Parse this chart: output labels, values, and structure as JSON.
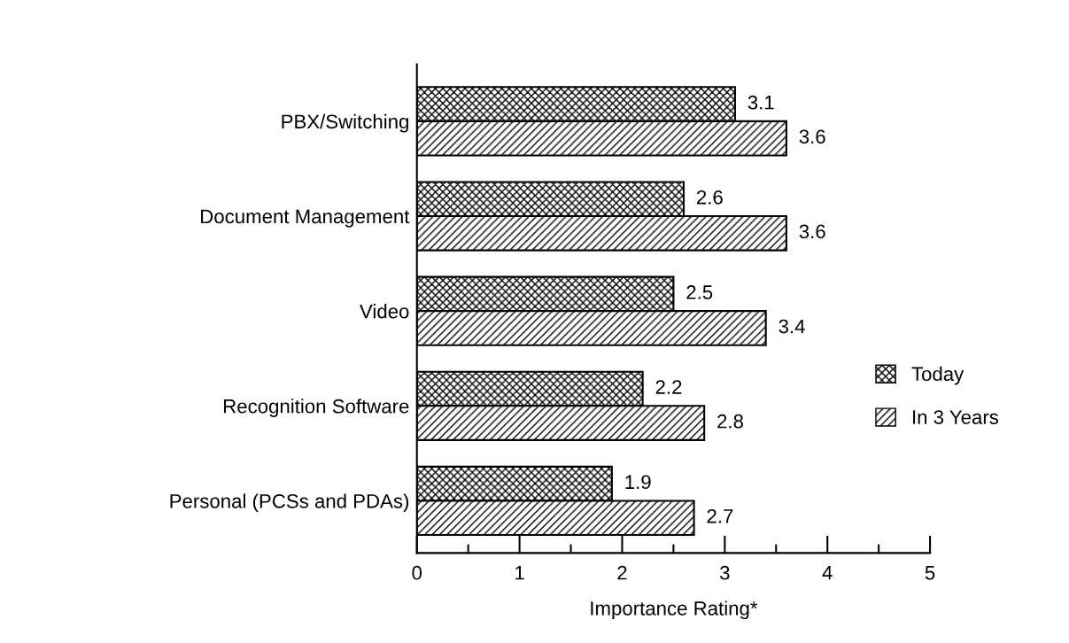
{
  "chart_data": {
    "type": "bar",
    "orientation": "horizontal",
    "xlabel": "Importance Rating*",
    "categories": [
      "PBX/Switching",
      "Document Management",
      "Video",
      "Recognition Software",
      "Personal (PCSs and PDAs)"
    ],
    "series": [
      {
        "name": "Today",
        "color": "#000000",
        "values": [
          3.1,
          2.6,
          2.5,
          2.2,
          1.9
        ]
      },
      {
        "name": "In 3 Years",
        "color": "#000000",
        "values": [
          3.6,
          3.6,
          3.4,
          2.8,
          2.7
        ]
      }
    ],
    "xlim": [
      0,
      5
    ],
    "xticks": [
      0,
      {
        "value": 0.5,
        "label": null
      },
      1,
      {
        "value": 1.5,
        "label": null
      },
      2,
      {
        "value": 2.5,
        "label": null
      },
      3,
      {
        "value": 3.5,
        "label": null
      },
      4,
      {
        "value": 4.5,
        "label": null
      },
      5
    ],
    "data_labels": true,
    "legend": "right",
    "grid": false
  }
}
